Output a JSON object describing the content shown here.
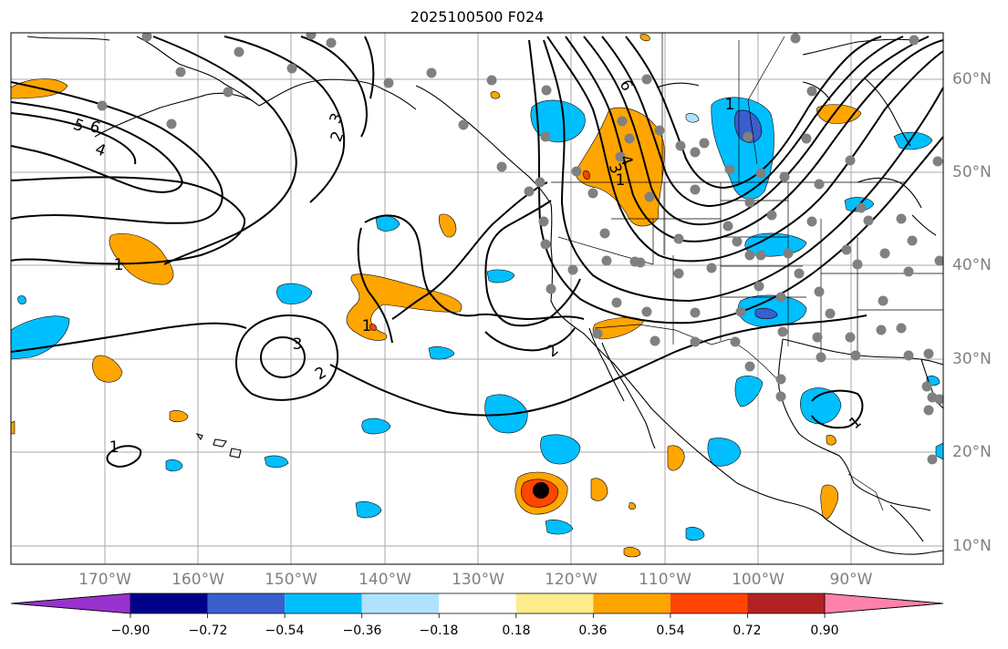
{
  "title": "2025100500 F024",
  "map": {
    "lon_labels": [
      "170°W",
      "160°W",
      "150°W",
      "140°W",
      "130°W",
      "120°W",
      "110°W",
      "100°W",
      "90°W"
    ],
    "lat_labels": [
      "60°N",
      "50°N",
      "40°N",
      "30°N",
      "20°N",
      "10°N"
    ],
    "contour_labels": [
      "5",
      "6",
      "4",
      "3",
      "2",
      "1",
      "6",
      "3",
      "4",
      "1",
      "3",
      "2",
      "1",
      "2",
      "1",
      "1",
      "1"
    ],
    "colors": {
      "land_line": "#000000",
      "grid": "#a0a0a0",
      "contour": "#000000",
      "station_dot": "#808080",
      "storm_center": "#000000"
    }
  },
  "colorbar": {
    "tick_labels": [
      "−0.90",
      "−0.72",
      "−0.54",
      "−0.36",
      "−0.18",
      "0.18",
      "0.36",
      "0.54",
      "0.72",
      "0.90"
    ],
    "bins": [
      "#9932cc",
      "#00008b",
      "#3a5fcd",
      "#00bfff",
      "#b0e2ff",
      "#ffffff",
      "#ffec8b",
      "#ffa500",
      "#ff4500",
      "#b22222",
      "#ff82ab"
    ]
  }
}
